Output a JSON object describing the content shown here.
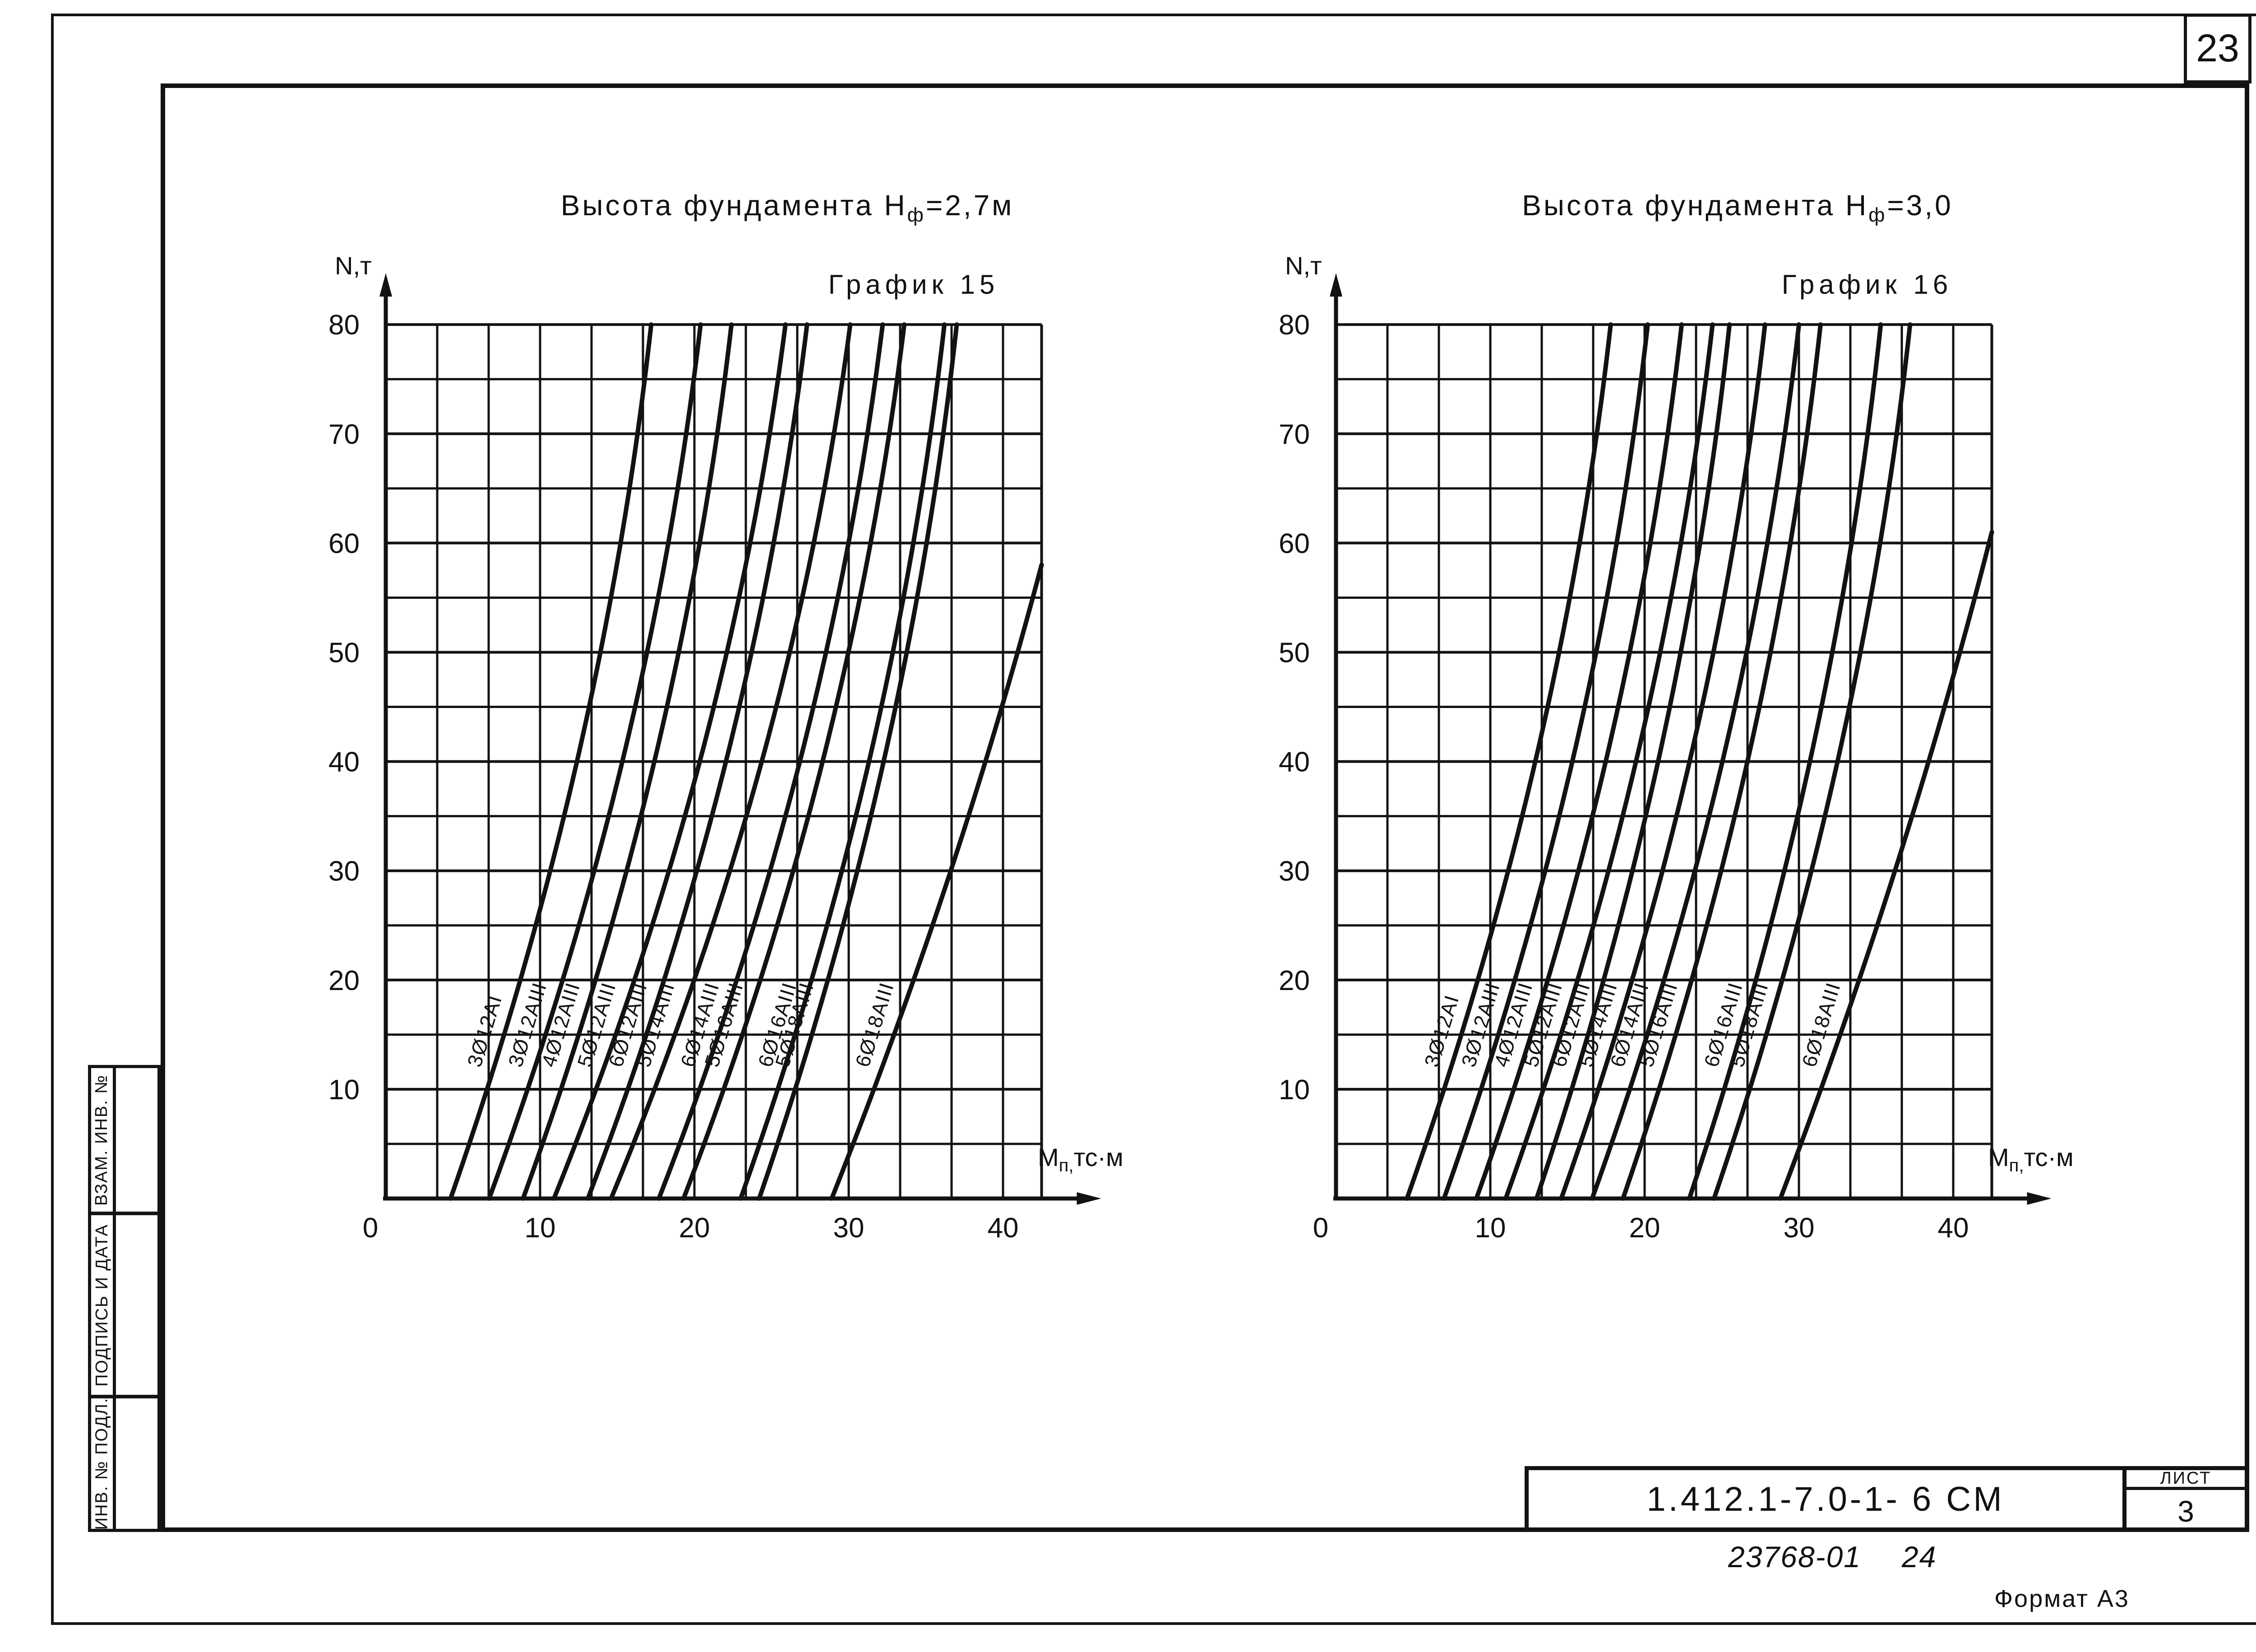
{
  "page": {
    "sheet_corner_number": "23",
    "doc_code": "1.412.1-7.0-1- 6 СМ",
    "list_label": "ЛИСТ",
    "list_value": "3",
    "stamp_code": "23768-01",
    "stamp_code_extra": "24",
    "format_label": "Формат А3",
    "ink_color": "#121212",
    "paper_color": "#ffffff"
  },
  "side_stamp": {
    "cells": [
      {
        "label": "ВЗАМ. ИНВ. №"
      },
      {
        "label": "ПОДПИСЬ  И  ДАТА"
      },
      {
        "label": "ИНВ. № ПОДЛ."
      }
    ]
  },
  "chart_data": [
    {
      "type": "line",
      "title": {
        "t1": "Высота  фундамента  Н",
        "sub": "ф",
        "t2": "=2,7м"
      },
      "subtitle": "График 15",
      "ylabel": "N,т",
      "xlabel": {
        "m": "М",
        "sub": "п,",
        "unit": "тс·м"
      },
      "xlim": [
        0,
        42.5
      ],
      "ylim": [
        0,
        80
      ],
      "x_ticks": [
        0,
        10,
        20,
        30,
        40
      ],
      "y_ticks": [
        10,
        20,
        30,
        40,
        50,
        60,
        70,
        80
      ],
      "x_grid_step": 3.3333,
      "y_grid_step": 5,
      "grid": true,
      "series": [
        {
          "name": "3Ø12АI",
          "M_at_N0": 4.2,
          "M_at_N80": 17.2
        },
        {
          "name": "3Ø12АIII",
          "M_at_N0": 6.7,
          "M_at_N80": 20.4
        },
        {
          "name": "4Ø12АIII",
          "M_at_N0": 8.9,
          "M_at_N80": 22.4
        },
        {
          "name": "5Ø12АIII",
          "M_at_N0": 10.9,
          "M_at_N80": 25.9
        },
        {
          "name": "6Ø12АIII",
          "M_at_N0": 13.1,
          "M_at_N80": 27.3
        },
        {
          "name": "5Ø14АIII",
          "M_at_N0": 14.6,
          "M_at_N80": 30.1
        },
        {
          "name": "6Ø14АIII",
          "M_at_N0": 17.7,
          "M_at_N80": 32.2
        },
        {
          "name": "5Ø16АIII",
          "M_at_N0": 19.3,
          "M_at_N80": 33.6
        },
        {
          "name": "6Ø16АIII",
          "M_at_N0": 23.0,
          "M_at_N80": 36.2
        },
        {
          "name": "5Ø18АIII",
          "M_at_N0": 24.2,
          "M_at_N80": 37.0
        },
        {
          "name": "6Ø18АIII",
          "M_at_N0": 28.9,
          "M_exit": 42.5,
          "N_exit": 58
        }
      ]
    },
    {
      "type": "line",
      "title": {
        "t1": "Высота  фундамента  Н",
        "sub": "ф",
        "t2": "=3,0"
      },
      "subtitle": "График 16",
      "ylabel": "N,т",
      "xlabel": {
        "m": "М",
        "sub": "п,",
        "unit": "тс·м"
      },
      "xlim": [
        0,
        42.5
      ],
      "ylim": [
        0,
        80
      ],
      "x_ticks": [
        0,
        10,
        20,
        30,
        40
      ],
      "y_ticks": [
        10,
        20,
        30,
        40,
        50,
        60,
        70,
        80
      ],
      "x_grid_step": 3.3333,
      "y_grid_step": 5,
      "grid": true,
      "series": [
        {
          "name": "3Ø12АI",
          "M_at_N0": 4.6,
          "M_at_N80": 17.8
        },
        {
          "name": "3Ø12АIII",
          "M_at_N0": 7.0,
          "M_at_N80": 20.2
        },
        {
          "name": "4Ø12АIII",
          "M_at_N0": 9.1,
          "M_at_N80": 22.4
        },
        {
          "name": "5Ø12АIII",
          "M_at_N0": 11.0,
          "M_at_N80": 24.4
        },
        {
          "name": "6Ø12АIII",
          "M_at_N0": 13.0,
          "M_at_N80": 25.5
        },
        {
          "name": "5Ø14АIII",
          "M_at_N0": 14.6,
          "M_at_N80": 27.8
        },
        {
          "name": "6Ø14АIII",
          "M_at_N0": 16.6,
          "M_at_N80": 30.0
        },
        {
          "name": "5Ø16АIII",
          "M_at_N0": 18.6,
          "M_at_N80": 31.4
        },
        {
          "name": "6Ø16АIII",
          "M_at_N0": 22.9,
          "M_at_N80": 35.3
        },
        {
          "name": "5Ø18АIII",
          "M_at_N0": 24.5,
          "M_at_N80": 37.2
        },
        {
          "name": "6Ø18АIII",
          "M_at_N0": 28.8,
          "M_exit": 42.5,
          "N_exit": 61
        }
      ]
    }
  ]
}
